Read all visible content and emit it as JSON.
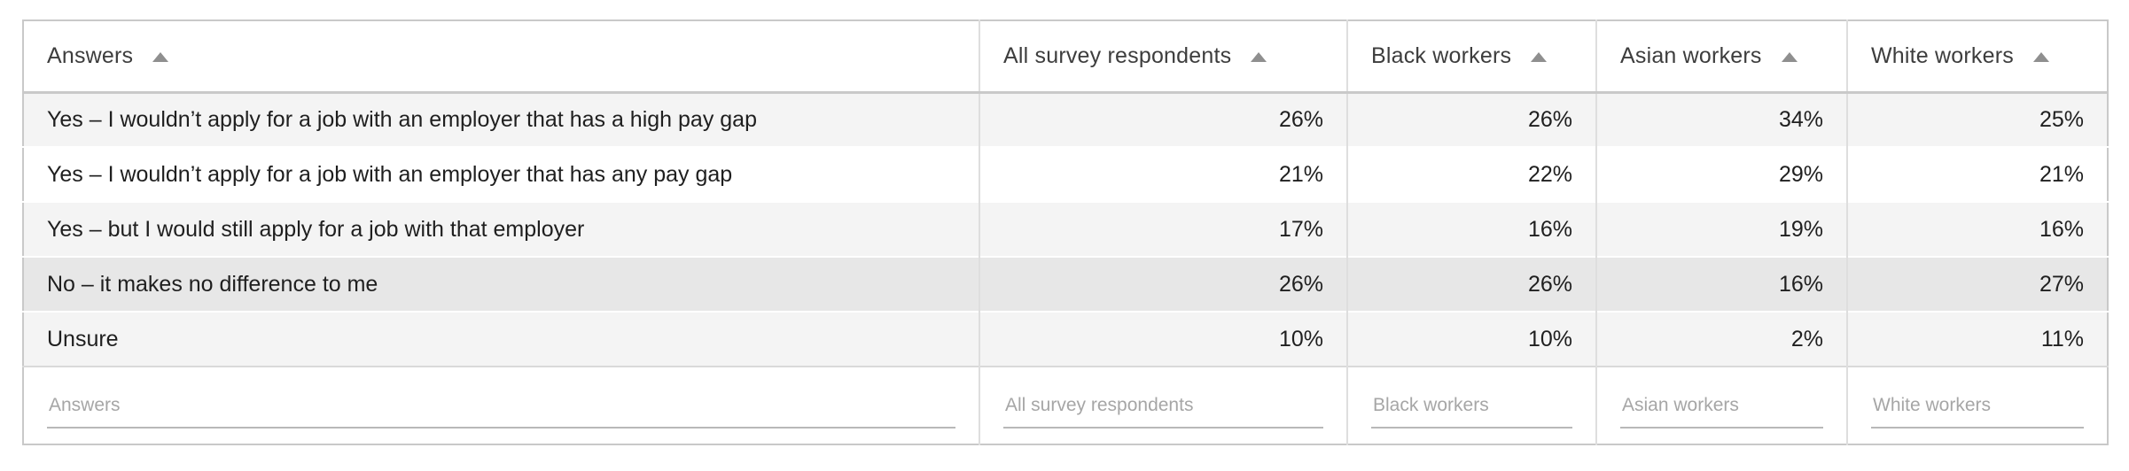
{
  "chart_data": {
    "type": "table",
    "title": "",
    "columns": [
      "Answers",
      "All survey respondents",
      "Black workers",
      "Asian workers",
      "White workers"
    ],
    "rows": [
      [
        "Yes – I wouldn’t apply for a job with an employer that has a high pay gap",
        "26%",
        "26%",
        "34%",
        "25%"
      ],
      [
        "Yes – I wouldn’t apply for a job with an employer that has any pay gap",
        "21%",
        "22%",
        "29%",
        "21%"
      ],
      [
        "Yes – but I would still apply for a job with that employer",
        "17%",
        "16%",
        "19%",
        "16%"
      ],
      [
        "No – it makes no difference to me",
        "26%",
        "26%",
        "16%",
        "27%"
      ],
      [
        "Unsure",
        "10%",
        "10%",
        "2%",
        "11%"
      ]
    ]
  },
  "ui": {
    "sort_icon": "triangle-up",
    "sort_state": "ascending",
    "highlighted_row_index": 3,
    "filter_placeholders": [
      "Answers",
      "All survey respondents",
      "Black workers",
      "Asian workers",
      "White workers"
    ],
    "colors": {
      "outer_border": "#c9c9c9",
      "column_divider": "#dedede",
      "row_stripe": "#f4f4f4",
      "row_highlight": "#e7e7e7",
      "header_text": "#3d3d3d",
      "body_text": "#1f1f1f",
      "sort_arrow": "#8f8f8f",
      "placeholder_text": "#a6a6a6",
      "input_underline": "#b8b8b8"
    }
  }
}
